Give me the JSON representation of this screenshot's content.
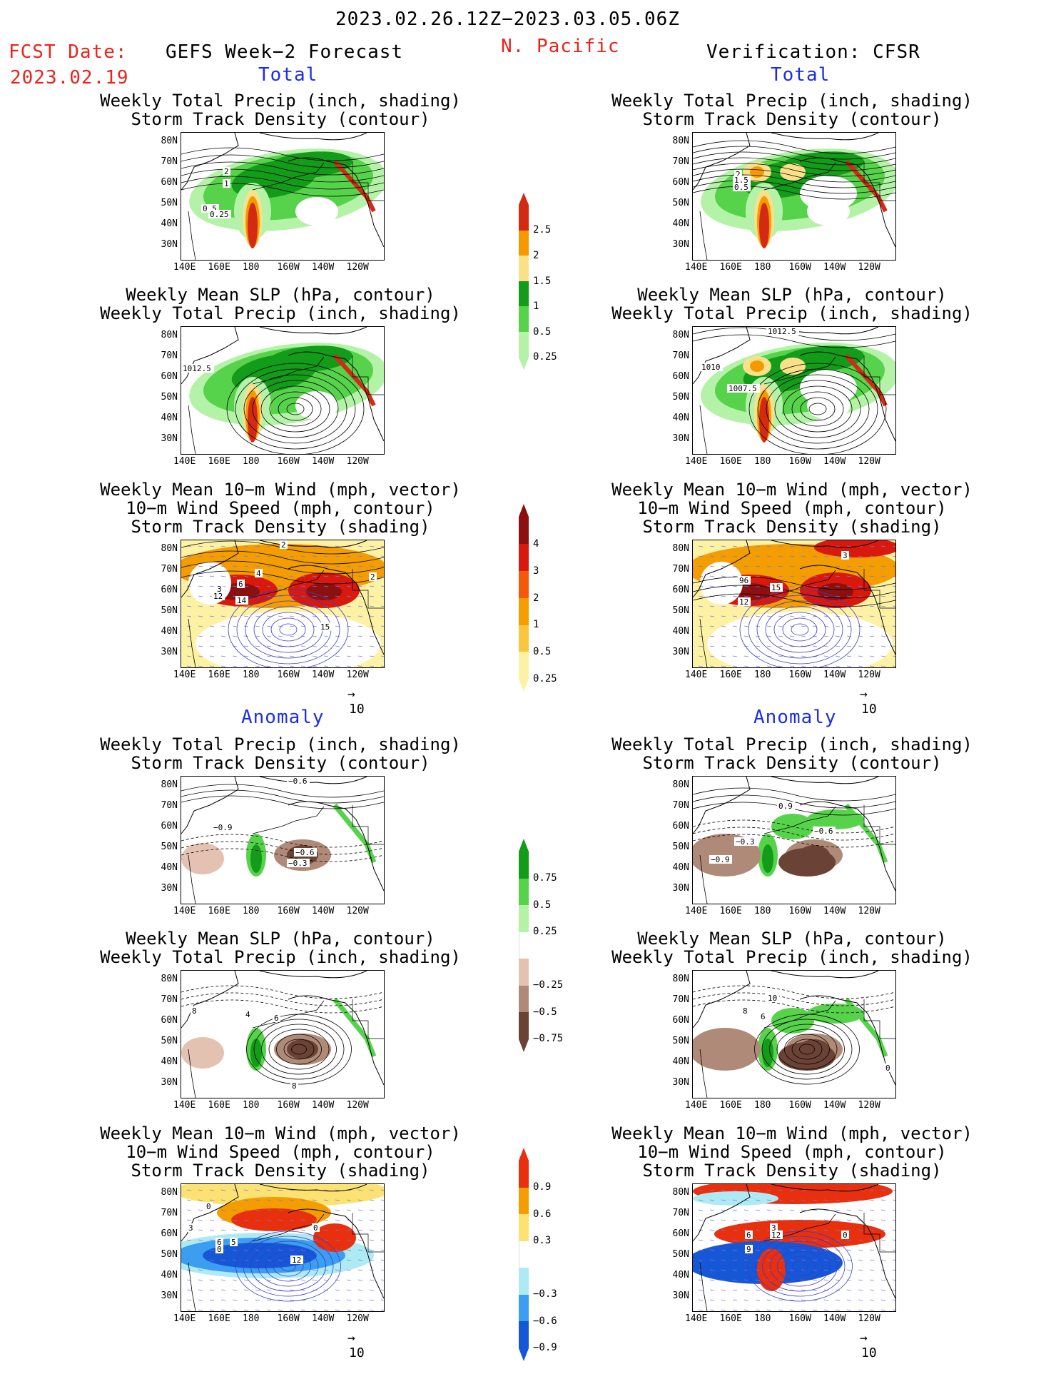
{
  "header": {
    "date_range": "2023.02.26.12Z−2023.03.05.06Z",
    "fcst_label": "FCST Date:",
    "fcst_date": "2023.02.19",
    "left_title": "GEFS Week−2 Forecast",
    "region": "N. Pacific",
    "right_title": "Verification: CFSR",
    "total": "Total",
    "anomaly": "Anomaly"
  },
  "titles": {
    "precip_track": [
      "Weekly Total Precip (inch, shading)",
      "Storm Track Density (contour)"
    ],
    "slp_precip": [
      "Weekly Mean SLP (hPa, contour)",
      "Weekly Total Precip (inch, shading)"
    ],
    "wind_track": [
      "Weekly Mean 10−m Wind (mph, vector)",
      "10−m Wind Speed (mph, contour)",
      "Storm Track Density (shading)"
    ]
  },
  "axes": {
    "lat": [
      "80N",
      "70N",
      "60N",
      "50N",
      "40N",
      "30N"
    ],
    "lon": [
      "140E",
      "160E",
      "180",
      "160W",
      "140W",
      "120W"
    ]
  },
  "vector_ref": "10",
  "colorbars": {
    "precip_total": {
      "labels": [
        "2.5",
        "2",
        "1.5",
        "1",
        "0.5",
        "0.25"
      ],
      "colors": [
        "#d42a14",
        "#f49a00",
        "#fbe08a",
        "#139b1a",
        "#56d34a",
        "#b4f2a8"
      ]
    },
    "storm_total": {
      "labels": [
        "4",
        "3",
        "2",
        "1",
        "0.5",
        "0.25"
      ],
      "colors": [
        "#8c1010",
        "#d9190e",
        "#f4590a",
        "#f49d00",
        "#f8c73d",
        "#fdf2a4"
      ]
    },
    "precip_anom": {
      "labels": [
        "0.75",
        "0.5",
        "0.25",
        "−0.25",
        "−0.5",
        "−0.75"
      ],
      "colors": [
        "#139b1a",
        "#56d34a",
        "#b4f2a8",
        "#ffffff",
        "#e4c2b2",
        "#b08a78",
        "#6b4336"
      ]
    },
    "storm_anom": {
      "labels": [
        "0.9",
        "0.6",
        "0.3",
        "−0.3",
        "−0.6",
        "−0.9"
      ],
      "colors": [
        "#e8300e",
        "#f49d00",
        "#fbe272",
        "#ffffff",
        "#aeeaf4",
        "#3b9ef0",
        "#1657d6"
      ]
    }
  },
  "panel_labels": {
    "p1L": [
      "2",
      "1",
      "0.5",
      "0.25"
    ],
    "p1R": [
      "2",
      "1.5",
      "0.5"
    ],
    "p2L": [
      "1012.5"
    ],
    "p2R": [
      "1012.5",
      "1010",
      "1007.5"
    ],
    "p3L": [
      "2",
      "4",
      "6",
      "3",
      "12",
      "14",
      "15",
      "2"
    ],
    "p3R": [
      "3",
      "96",
      "15",
      "12"
    ],
    "p4L": [
      "−0.6",
      "−0.9",
      "−0.6",
      "−0.3"
    ],
    "p4R": [
      "0.9",
      "−0.3",
      "−0.6",
      "−0.9"
    ],
    "p5L": [
      "8",
      "4",
      "6",
      "8"
    ],
    "p5R": [
      "10",
      "8",
      "6",
      "0"
    ],
    "p6L": [
      "0",
      "3",
      "6",
      "0",
      "5",
      "12",
      "0"
    ],
    "p6R": [
      "3",
      "6",
      "12",
      "0",
      "9"
    ]
  }
}
